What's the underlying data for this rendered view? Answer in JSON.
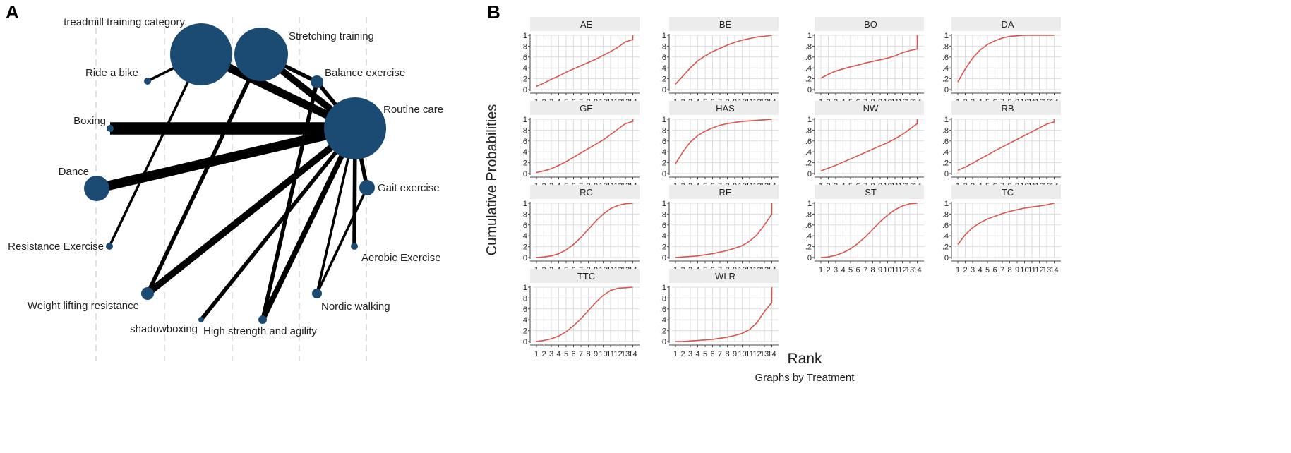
{
  "panel_a_label": "A",
  "panel_b_label": "B",
  "colors": {
    "node": "#1b4a73",
    "edge": "#000000",
    "curve": "#d9534f",
    "strip": "#ececec",
    "grid": "#dddddd"
  },
  "chart_data": [
    {
      "type": "network",
      "panel": "A",
      "nodes": [
        {
          "id": "ttc",
          "label": "treadmill training category"
        },
        {
          "id": "st",
          "label": "Stretching training"
        },
        {
          "id": "bike",
          "label": "Ride a bike"
        },
        {
          "id": "bal",
          "label": "Balance exercise"
        },
        {
          "id": "rc",
          "label": "Routine care"
        },
        {
          "id": "box",
          "label": "Boxing"
        },
        {
          "id": "dance",
          "label": "Dance"
        },
        {
          "id": "gait",
          "label": "Gait exercise"
        },
        {
          "id": "res",
          "label": "Resistance Exercise"
        },
        {
          "id": "aer",
          "label": "Aerobic Exercise"
        },
        {
          "id": "wlr",
          "label": "Weight lifting resistance"
        },
        {
          "id": "nw",
          "label": "Nordic walking"
        },
        {
          "id": "shadow",
          "label": "shadowboxing"
        },
        {
          "id": "hsa",
          "label": "High strength and agility"
        }
      ],
      "edges": [
        {
          "from": "ttc",
          "to": "rc",
          "weight": 5
        },
        {
          "from": "st",
          "to": "rc",
          "weight": 4
        },
        {
          "from": "ttc",
          "to": "bike",
          "weight": 1
        },
        {
          "from": "ttc",
          "to": "res",
          "weight": 1
        },
        {
          "from": "st",
          "to": "wlr",
          "weight": 2
        },
        {
          "from": "box",
          "to": "rc",
          "weight": 8
        },
        {
          "from": "dance",
          "to": "rc",
          "weight": 6
        },
        {
          "from": "bal",
          "to": "rc",
          "weight": 2
        },
        {
          "from": "bal",
          "to": "hsa",
          "weight": 2
        },
        {
          "from": "gait",
          "to": "rc",
          "weight": 2
        },
        {
          "from": "gait",
          "to": "nw",
          "weight": 1
        },
        {
          "from": "aer",
          "to": "rc",
          "weight": 2
        },
        {
          "from": "wlr",
          "to": "rc",
          "weight": 4
        },
        {
          "from": "shadow",
          "to": "rc",
          "weight": 2
        },
        {
          "from": "hsa",
          "to": "rc",
          "weight": 3
        },
        {
          "from": "st",
          "to": "bal",
          "weight": 2
        },
        {
          "from": "nw",
          "to": "rc",
          "weight": 1
        }
      ]
    },
    {
      "type": "line",
      "panel": "B",
      "ylabel": "Cumulative Probabilities",
      "xlabel": "Rank",
      "note": "Graphs by Treatment",
      "x": [
        1,
        2,
        3,
        4,
        5,
        6,
        7,
        8,
        9,
        10,
        11,
        12,
        13,
        14
      ],
      "x_tick_labels": [
        "1",
        "2",
        "3",
        "4",
        "5",
        "6",
        "7",
        "8",
        "9",
        "10",
        "11",
        "12",
        "13",
        "14"
      ],
      "y_tick_labels": [
        "0",
        ".2",
        ".4",
        ".6",
        ".8",
        "1"
      ],
      "ylim": [
        0,
        1
      ],
      "series": [
        {
          "name": "AE",
          "values": [
            0.06,
            0.12,
            0.19,
            0.25,
            0.32,
            0.38,
            0.44,
            0.5,
            0.56,
            0.63,
            0.7,
            0.78,
            0.88,
            0.92
          ]
        },
        {
          "name": "BE",
          "values": [
            0.1,
            0.25,
            0.4,
            0.53,
            0.62,
            0.7,
            0.76,
            0.82,
            0.87,
            0.91,
            0.94,
            0.97,
            0.98,
            1.0
          ]
        },
        {
          "name": "BO",
          "values": [
            0.21,
            0.28,
            0.34,
            0.38,
            0.42,
            0.45,
            0.49,
            0.52,
            0.55,
            0.58,
            0.62,
            0.68,
            0.72,
            0.75
          ]
        },
        {
          "name": "DA",
          "values": [
            0.14,
            0.38,
            0.58,
            0.73,
            0.83,
            0.9,
            0.95,
            0.98,
            0.99,
            1.0,
            1.0,
            1.0,
            1.0,
            1.0
          ]
        },
        {
          "name": "GE",
          "values": [
            0.02,
            0.05,
            0.09,
            0.15,
            0.22,
            0.3,
            0.38,
            0.46,
            0.54,
            0.62,
            0.72,
            0.82,
            0.92,
            0.96
          ]
        },
        {
          "name": "HAS",
          "values": [
            0.18,
            0.4,
            0.58,
            0.7,
            0.78,
            0.84,
            0.89,
            0.92,
            0.94,
            0.96,
            0.97,
            0.98,
            0.99,
            1.0
          ]
        },
        {
          "name": "NW",
          "values": [
            0.05,
            0.1,
            0.15,
            0.21,
            0.27,
            0.33,
            0.39,
            0.45,
            0.51,
            0.57,
            0.64,
            0.72,
            0.82,
            0.92
          ]
        },
        {
          "name": "RB",
          "values": [
            0.06,
            0.12,
            0.19,
            0.27,
            0.34,
            0.42,
            0.49,
            0.56,
            0.63,
            0.7,
            0.77,
            0.84,
            0.91,
            0.95
          ]
        },
        {
          "name": "RC",
          "values": [
            0.0,
            0.01,
            0.03,
            0.07,
            0.14,
            0.24,
            0.37,
            0.52,
            0.67,
            0.8,
            0.9,
            0.96,
            0.99,
            1.0
          ]
        },
        {
          "name": "RE",
          "values": [
            0.0,
            0.01,
            0.02,
            0.03,
            0.05,
            0.07,
            0.1,
            0.13,
            0.17,
            0.22,
            0.3,
            0.42,
            0.6,
            0.8
          ]
        },
        {
          "name": "ST",
          "values": [
            0.0,
            0.01,
            0.04,
            0.09,
            0.16,
            0.26,
            0.38,
            0.52,
            0.66,
            0.78,
            0.88,
            0.95,
            0.99,
            1.0
          ]
        },
        {
          "name": "TC",
          "values": [
            0.24,
            0.42,
            0.55,
            0.64,
            0.71,
            0.76,
            0.81,
            0.85,
            0.88,
            0.91,
            0.93,
            0.95,
            0.97,
            1.0
          ]
        },
        {
          "name": "TTC",
          "values": [
            0.0,
            0.02,
            0.05,
            0.1,
            0.18,
            0.29,
            0.42,
            0.57,
            0.72,
            0.85,
            0.94,
            0.98,
            0.99,
            1.0
          ]
        },
        {
          "name": "WLR",
          "values": [
            0.0,
            0.0,
            0.01,
            0.02,
            0.03,
            0.04,
            0.06,
            0.08,
            0.11,
            0.15,
            0.22,
            0.35,
            0.55,
            0.72
          ]
        }
      ]
    }
  ]
}
